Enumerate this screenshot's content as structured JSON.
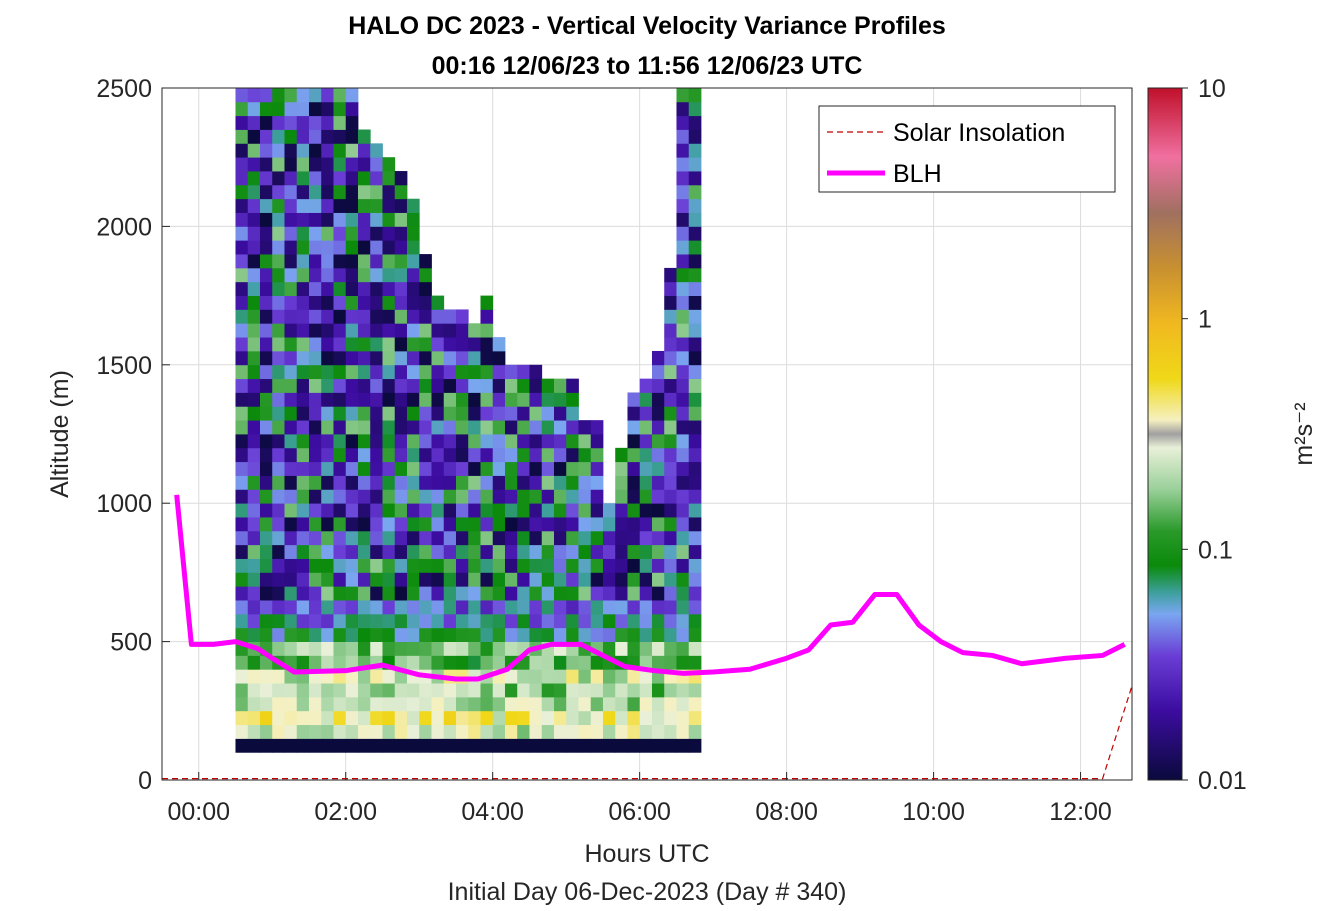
{
  "chart_data": {
    "type": "heatmap",
    "title": "HALO DC 2023 - Vertical Velocity Variance Profiles",
    "subtitle": "00:16 12/06/23 to 11:56 12/06/23  UTC",
    "xlabel": "Hours UTC",
    "xlabel2": "Initial Day 06-Dec-2023 (Day # 340)",
    "ylabel": "Altitude (m)",
    "colorbar_label": "m²s⁻²",
    "colorbar_scale": "log",
    "colorbar_range": [
      0.01,
      10
    ],
    "colorbar_ticks": [
      "0.01",
      "0.1",
      "1",
      "10"
    ],
    "xlim": [
      -0.5,
      12.7
    ],
    "ylim": [
      0,
      2500
    ],
    "x_ticks": [
      "00:00",
      "02:00",
      "04:00",
      "06:00",
      "08:00",
      "10:00",
      "12:00"
    ],
    "y_ticks": [
      "0",
      "500",
      "1000",
      "1500",
      "2000",
      "2500"
    ],
    "grid": true,
    "legend_position": "top-right",
    "legend": [
      "Solar Insolation",
      "BLH"
    ],
    "heatmap": {
      "time_start_hours": 0.5,
      "time_step_hours": 0.1667,
      "altitude_start_m": 100,
      "altitude_step_m": 50,
      "top_altitude_m": [
        2500,
        2500,
        2500,
        2500,
        2500,
        2500,
        2500,
        2500,
        2500,
        2500,
        2350,
        2300,
        2250,
        2200,
        2100,
        1900,
        1750,
        1700,
        1700,
        1650,
        1750,
        1600,
        1500,
        1500,
        1500,
        1450,
        1450,
        1450,
        1300,
        1300,
        1000,
        1200,
        1400,
        1450,
        1550,
        1850,
        2500,
        2500
      ],
      "first_bin_value": 0.01,
      "pbl_levels": [
        0.3,
        0.4,
        0.25,
        0.2,
        0.3,
        0.15,
        0.2,
        0.08,
        0.06,
        0.05
      ]
    },
    "series": [
      {
        "name": "BLH",
        "color": "#ff00ff",
        "x": [
          -0.3,
          -0.1,
          0.2,
          0.5,
          0.8,
          1.0,
          1.3,
          2.0,
          2.5,
          3.0,
          3.5,
          3.8,
          4.2,
          4.5,
          4.8,
          5.2,
          5.5,
          5.8,
          6.2,
          6.6,
          7.0,
          7.5,
          8.0,
          8.3,
          8.6,
          8.9,
          9.2,
          9.5,
          9.8,
          10.1,
          10.4,
          10.8,
          11.2,
          11.5,
          11.8,
          12.3,
          12.6
        ],
        "y": [
          1030,
          490,
          490,
          500,
          475,
          440,
          390,
          395,
          415,
          380,
          365,
          365,
          400,
          470,
          490,
          490,
          450,
          410,
          395,
          385,
          390,
          400,
          440,
          470,
          560,
          570,
          670,
          670,
          560,
          500,
          460,
          450,
          420,
          430,
          440,
          450,
          490
        ]
      },
      {
        "name": "Solar Insolation",
        "color": "#c00000",
        "x": [
          -0.5,
          12.3,
          12.7
        ],
        "y": [
          5,
          5,
          340
        ]
      }
    ]
  }
}
